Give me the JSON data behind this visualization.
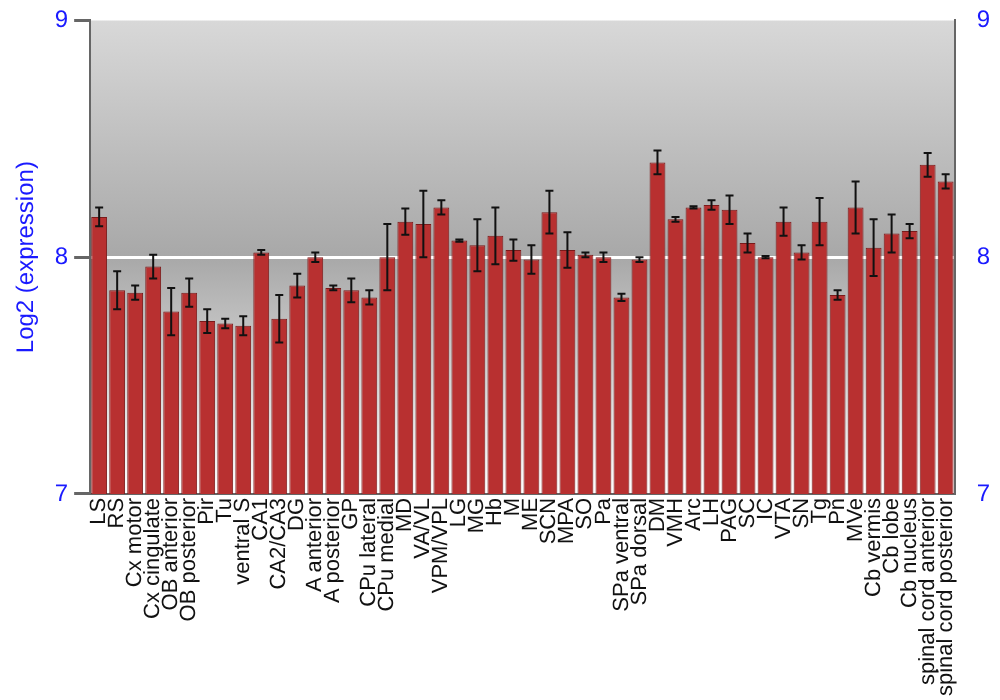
{
  "chart_data": {
    "type": "bar",
    "ylabel": "Log2 (expression)",
    "categories": [
      "LS",
      "RS",
      "Cx motor",
      "Cx cingulate",
      "OB anterior",
      "OB posterior",
      "Pir",
      "Tu",
      "ventral S",
      "CA1",
      "CA2/CA3",
      "DG",
      "A anterior",
      "A posterior",
      "GP",
      "CPu lateral",
      "CPu medial",
      "MD",
      "VA/VL",
      "VPM/VPL",
      "LG",
      "MG",
      "Hb",
      "M",
      "ME",
      "SCN",
      "MPA",
      "SO",
      "Pa",
      "SPa ventral",
      "SPa dorsal",
      "DM",
      "VMH",
      "Arc",
      "LH",
      "PAG",
      "SC",
      "IC",
      "VTA",
      "SN",
      "Tg",
      "Pn",
      "MVe",
      "Cb vermis",
      "Cb lobe",
      "Cb nucleus",
      "spinal cord anterior",
      "spinal cord posterior"
    ],
    "series": [
      {
        "color": "#b83030",
        "values": [
          8.17,
          7.86,
          7.85,
          7.96,
          7.77,
          7.85,
          7.73,
          7.72,
          7.71,
          8.02,
          7.74,
          7.88,
          8.0,
          7.87,
          7.86,
          7.83,
          8.0,
          8.15,
          8.14,
          8.21,
          8.07,
          8.05,
          8.09,
          8.03,
          7.99,
          8.19,
          8.03,
          8.01,
          8.0,
          7.83,
          7.99,
          8.4,
          8.16,
          8.21,
          8.22,
          8.2,
          8.06,
          8.0,
          8.15,
          8.02,
          8.15,
          7.84,
          8.21,
          8.04,
          8.1,
          8.11,
          8.39,
          8.32
        ],
        "errors": [
          0.04,
          0.08,
          0.03,
          0.05,
          0.1,
          0.06,
          0.05,
          0.02,
          0.04,
          0.01,
          0.1,
          0.05,
          0.02,
          0.01,
          0.05,
          0.03,
          0.14,
          0.055,
          0.14,
          0.03,
          0.005,
          0.11,
          0.12,
          0.045,
          0.06,
          0.09,
          0.075,
          0.01,
          0.02,
          0.015,
          0.01,
          0.05,
          0.01,
          0.005,
          0.02,
          0.06,
          0.04,
          0.005,
          0.06,
          0.03,
          0.1,
          0.02,
          0.11,
          0.12,
          0.08,
          0.03,
          0.05,
          0.03
        ]
      }
    ],
    "ylim": [
      7,
      9
    ],
    "yticks": [
      7,
      8,
      9
    ],
    "y2lim": [
      7,
      9
    ],
    "y2ticks": [
      7,
      8,
      9
    ],
    "grid": "y",
    "legend": false
  }
}
